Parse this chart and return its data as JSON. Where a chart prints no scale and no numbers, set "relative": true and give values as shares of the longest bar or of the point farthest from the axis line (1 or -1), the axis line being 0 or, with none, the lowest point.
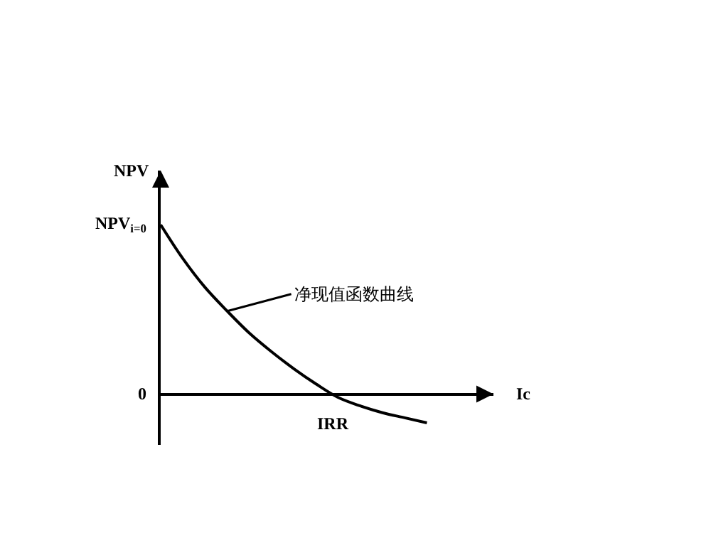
{
  "chart_data": {
    "type": "line",
    "relative": true,
    "xlabel": "Ic",
    "ylabel": "NPV",
    "categories": [
      null,
      null,
      null,
      null,
      null,
      null,
      null,
      null,
      null,
      null,
      null,
      null,
      null
    ],
    "series": [
      {
        "name": "净现值函数曲线",
        "color": "#000000",
        "values": [
          1,
          0.8,
          0.63,
          0.49,
          0.36,
          0.25,
          0.15,
          0.06,
          -0.02,
          -0.07,
          -0.11,
          -0.14,
          -0.17
        ]
      }
    ],
    "annotations": [
      "NPV$_{i=0}$",
      "0",
      "IRR"
    ],
    "marker": "none",
    "line_style": "solid"
  }
}
